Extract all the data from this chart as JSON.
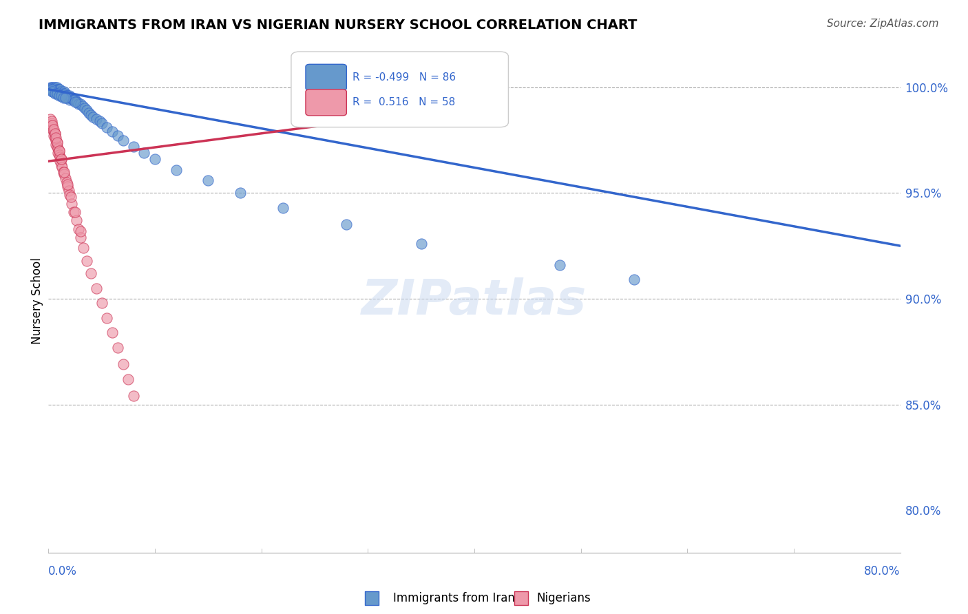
{
  "title": "IMMIGRANTS FROM IRAN VS NIGERIAN NURSERY SCHOOL CORRELATION CHART",
  "source": "Source: ZipAtlas.com",
  "ylabel": "Nursery School",
  "xlim": [
    0.0,
    0.8
  ],
  "ylim": [
    0.78,
    1.018
  ],
  "R_blue": -0.499,
  "N_blue": 86,
  "R_pink": 0.516,
  "N_pink": 58,
  "blue_color": "#6699cc",
  "pink_color": "#ee99aa",
  "trend_blue_color": "#3366cc",
  "trend_pink_color": "#cc3355",
  "legend_label_blue": "Immigrants from Iran",
  "legend_label_pink": "Nigerians",
  "watermark": "ZIPatlas",
  "trend_blue_x0": 0.0,
  "trend_blue_y0": 0.999,
  "trend_blue_x1": 0.8,
  "trend_blue_y1": 0.925,
  "trend_pink_x0": 0.0,
  "trend_pink_y0": 0.965,
  "trend_pink_x1": 0.38,
  "trend_pink_y1": 0.99
}
